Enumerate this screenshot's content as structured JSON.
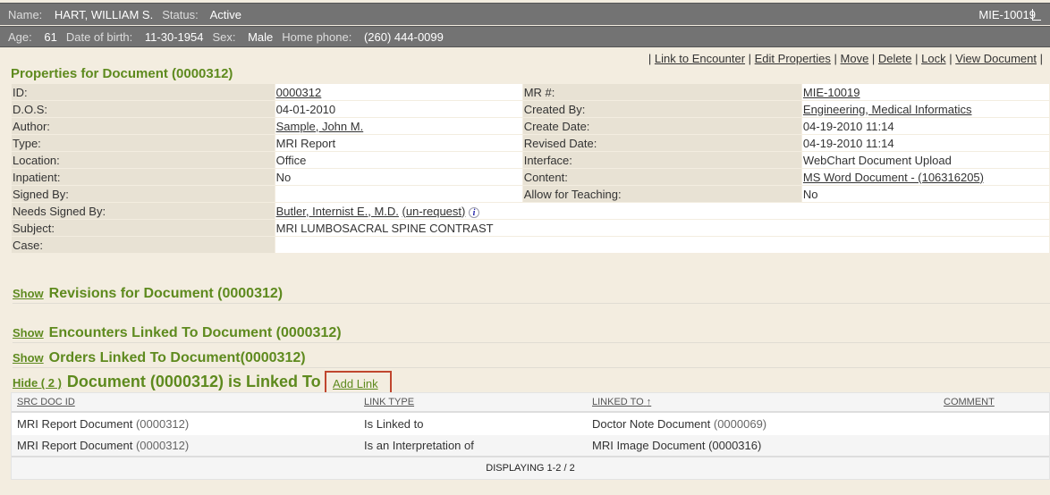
{
  "patient": {
    "name_label": "Name:",
    "name": "HART, WILLIAM S.",
    "status_label": "Status:",
    "status": "Active",
    "mrn": "MIE-10019",
    "age_label": "Age:",
    "age": "61",
    "dob_label": "Date of birth:",
    "dob": "11-30-1954",
    "sex_label": "Sex:",
    "sex": "Male",
    "phone_label": "Home phone:",
    "phone": "(260) 444-0099"
  },
  "actions": [
    "Link to Encounter",
    "Edit Properties",
    "Move",
    "Delete",
    "Lock",
    "View Document"
  ],
  "properties": {
    "title": "Properties for Document (0000312)",
    "rows": [
      {
        "l1": "ID:",
        "v1": "0000312",
        "l2": "MR #:",
        "v2": "MIE-10019"
      },
      {
        "l1": "D.O.S:",
        "v1": "04-01-2010",
        "l2": "Created By:",
        "v2": "Engineering, Medical Informatics"
      },
      {
        "l1": "Author:",
        "v1": "Sample, John M.",
        "l2": "Create Date:",
        "v2": "04-19-2010 11:14"
      },
      {
        "l1": "Type:",
        "v1": "MRI Report",
        "l2": "Revised Date:",
        "v2": "04-19-2010 11:14"
      },
      {
        "l1": "Location:",
        "v1": "Office",
        "l2": "Interface:",
        "v2": "WebChart Document Upload"
      },
      {
        "l1": "Inpatient:",
        "v1": "No",
        "l2": "Content:",
        "v2": "MS Word Document - (106316205)"
      },
      {
        "l1": "Signed By:",
        "v1": "",
        "l2": "Allow for Teaching:",
        "v2": "No"
      }
    ],
    "needs_signed_label": "Needs Signed By:",
    "needs_signed": "Butler, Internist E., M.D.",
    "unrequest": "(un-request)",
    "subject_label": "Subject:",
    "subject": "MRI LUMBOSACRAL SPINE CONTRAST",
    "case_label": "Case:",
    "case": ""
  },
  "sections": {
    "show": "Show",
    "revisions": "Revisions for Document (0000312)",
    "encounters": "Encounters Linked To Document (0000312)",
    "orders": "Orders Linked To Document(0000312)",
    "hide": "Hide ( 2 )",
    "linked": "Document (0000312) is Linked To",
    "add_link": "Add Link"
  },
  "links_table": {
    "headers": [
      "SRC DOC ID",
      "LINK TYPE",
      "LINKED TO",
      "COMMENT"
    ],
    "rows": [
      {
        "src": "MRI Report Document",
        "src_id": "(0000312)",
        "type": "Is Linked to",
        "to": "Doctor Note Document",
        "to_id": "(0000069)",
        "comment": ""
      },
      {
        "src": "MRI Report Document",
        "src_id": "(0000312)",
        "type": "Is an Interpretation of",
        "to": "MRI Image Document",
        "to_id": "(0000316)",
        "comment": ""
      }
    ],
    "footer": "DISPLAYING 1-2 / 2"
  }
}
